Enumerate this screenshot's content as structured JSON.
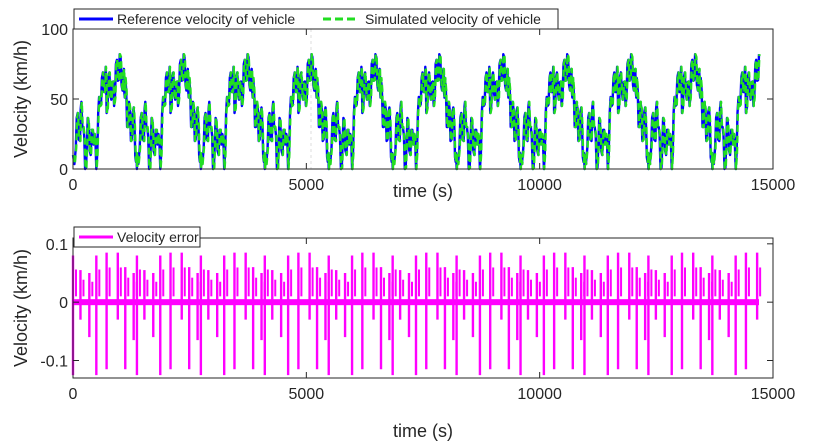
{
  "chart_data": [
    {
      "type": "line",
      "title": "",
      "xlabel": "time (s)",
      "ylabel": "Velocity (km/h)",
      "xlim": [
        0,
        15000
      ],
      "ylim": [
        0,
        100
      ],
      "xticks": [
        "0",
        "5000",
        "10000",
        "15000"
      ],
      "yticks": [
        "0",
        "50",
        "100"
      ],
      "grid": false,
      "legend_position": "top-left",
      "cycle_period_s": 1370,
      "cycle_count": 10.7,
      "x_end": 14700,
      "series": [
        {
          "name": "Reference velocity of vehicle",
          "color": "#0000ff",
          "style": "solid",
          "cycle_profile": {
            "t": [
              0,
              60,
              100,
              150,
              180,
              220,
              260,
              300,
              330,
              380,
              420,
              460,
              500,
              540,
              580,
              620,
              660,
              700,
              720,
              760,
              800,
              840,
              880,
              920,
              960,
              1000,
              1040,
              1080,
              1100,
              1120,
              1160,
              1200,
              1240,
              1280,
              1320,
              1350,
              1370
            ],
            "v": [
              10,
              15,
              40,
              20,
              48,
              30,
              0,
              20,
              35,
              10,
              28,
              25,
              0,
              40,
              45,
              65,
              55,
              73,
              40,
              65,
              55,
              62,
              45,
              75,
              63,
              82,
              60,
              70,
              55,
              65,
              30,
              48,
              20,
              40,
              30,
              5,
              0
            ]
          }
        },
        {
          "name": "Simulated velocity of vehicle",
          "color": "#22dd22",
          "style": "dashed",
          "note_visible": "overlaps reference"
        }
      ]
    },
    {
      "type": "line",
      "title": "",
      "xlabel": "time (s)",
      "ylabel": "Velocity (km/h)",
      "xlim": [
        0,
        15000
      ],
      "ylim": [
        -0.13,
        0.11
      ],
      "xticks": [
        "0",
        "5000",
        "10000",
        "15000"
      ],
      "yticks": [
        "-0.1",
        "0",
        "0.1"
      ],
      "grid": false,
      "legend_position": "top-left",
      "series": [
        {
          "name": "Velocity error",
          "color": "#ff00ff",
          "style": "solid",
          "spikes_per_cycle": [
            {
              "offset_s": 0,
              "min": -0.125,
              "max": 0.08
            },
            {
              "offset_s": 160,
              "min": -0.03,
              "max": 0.055
            },
            {
              "offset_s": 350,
              "min": -0.06,
              "max": 0.05
            },
            {
              "offset_s": 500,
              "min": -0.125,
              "max": 0.08
            },
            {
              "offset_s": 720,
              "min": -0.115,
              "max": 0.085
            },
            {
              "offset_s": 960,
              "min": -0.03,
              "max": 0.085
            },
            {
              "offset_s": 1120,
              "min": -0.115,
              "max": 0.06
            },
            {
              "offset_s": 1300,
              "min": -0.065,
              "max": 0.05
            }
          ]
        }
      ]
    }
  ],
  "colors": {
    "reference": "#0000ff",
    "simulated": "#22dd22",
    "error": "#ff00ff",
    "axis": "#262626"
  }
}
